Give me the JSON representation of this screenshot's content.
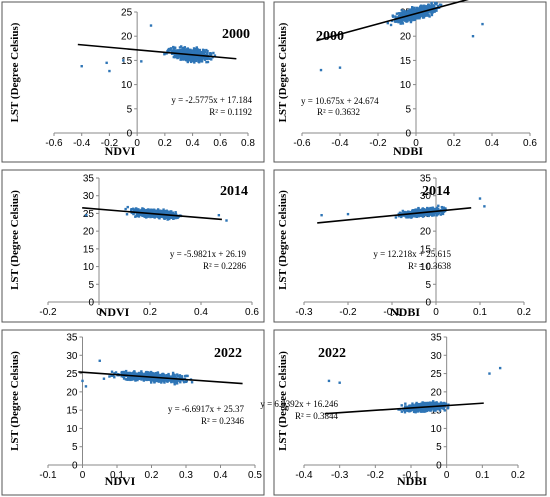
{
  "figure": {
    "chart_data": [
      {
        "type": "scatter",
        "panel": "1",
        "title": "2000",
        "xlabel": "NDVI",
        "ylabel": "LST (Degree Celsius)",
        "xlim": [
          -0.6,
          0.8
        ],
        "ylim": [
          0,
          25
        ],
        "xticks": [
          "-0.6",
          "-0.4",
          "-0.2",
          "0",
          "0.2",
          "0.4",
          "0.6",
          "0.8"
        ],
        "yticks": [
          "0",
          "5",
          "10",
          "15",
          "20",
          "25"
        ],
        "trend": {
          "slope": -2.5775,
          "intercept": 17.184
        },
        "equation": "y = -2.5775x + 17.184",
        "r2": "R² = 0.1192",
        "cloud": {
          "x_center": 0.38,
          "x_spread": 0.13,
          "x_min": 0.05,
          "x_max": 0.66,
          "noise": 1.2
        },
        "outliers": [
          {
            "x": -0.4,
            "y": 13.8
          },
          {
            "x": -0.2,
            "y": 12.8
          },
          {
            "x": -0.22,
            "y": 14.5
          },
          {
            "x": -0.1,
            "y": 15
          },
          {
            "x": 0.1,
            "y": 22.2
          },
          {
            "x": 0.03,
            "y": 14.8
          }
        ]
      },
      {
        "type": "scatter",
        "panel": "2",
        "title": "2000",
        "xlabel": "NDBI",
        "ylabel": "LST (Degree Celsius)",
        "xlim": [
          -0.6,
          0.6
        ],
        "ylim": [
          0,
          25
        ],
        "xticks": [
          "-0.6",
          "-0.4",
          "-0.2",
          "0",
          "0.2",
          "0.4",
          "0.6"
        ],
        "yticks": [
          "0",
          "5",
          "10",
          "15",
          "20",
          "25"
        ],
        "trend": {
          "slope": 10.675,
          "intercept": 24.674
        },
        "equation": "y = 10.675x + 24.674",
        "r2": "R² = 0.3632",
        "cloud": {
          "x_center": 0.0,
          "x_spread": 0.1,
          "x_min": -0.3,
          "x_max": 0.28,
          "noise": 1.1
        },
        "outliers": [
          {
            "x": -0.5,
            "y": 13
          },
          {
            "x": -0.4,
            "y": 13.5
          },
          {
            "x": 0.35,
            "y": 22.5
          },
          {
            "x": 0.3,
            "y": 20
          }
        ]
      },
      {
        "type": "scatter",
        "panel": "3",
        "title": "2014",
        "xlabel": "NDVI",
        "ylabel": "LST (Degree Celsius)",
        "xlim": [
          -0.2,
          0.6
        ],
        "ylim": [
          0,
          35
        ],
        "xticks": [
          "-0.2",
          "0",
          "0.2",
          "0.4",
          "0.6"
        ],
        "yticks": [
          "0",
          "5",
          "10",
          "15",
          "20",
          "25",
          "30",
          "35"
        ],
        "trend": {
          "slope": -5.9821,
          "intercept": 26.19
        },
        "equation": "y = -5.9821x + 26.19",
        "r2": "R² = 0.2286",
        "cloud": {
          "x_center": 0.22,
          "x_spread": 0.08,
          "x_min": 0.08,
          "x_max": 0.45,
          "noise": 1.0
        },
        "outliers": [
          {
            "x": -0.05,
            "y": 24.5
          },
          {
            "x": 0.5,
            "y": 23
          },
          {
            "x": 0.47,
            "y": 24.5
          }
        ]
      },
      {
        "type": "scatter",
        "panel": "4",
        "title": "2014",
        "xlabel": "NDBI",
        "ylabel": "LST (Degree Celsius)",
        "xlim": [
          -0.3,
          0.2
        ],
        "ylim": [
          0,
          35
        ],
        "xticks": [
          "-0.3",
          "-0.2",
          "-0.1",
          "0",
          "0.1",
          "0.2"
        ],
        "yticks": [
          "0",
          "5",
          "10",
          "15",
          "20",
          "25",
          "30",
          "35"
        ],
        "trend": {
          "slope": 12.218,
          "intercept": 25.615
        },
        "equation": "y = 12.218x + 25.615",
        "r2": "R² = 0.3638",
        "cloud": {
          "x_center": -0.03,
          "x_spread": 0.04,
          "x_min": -0.14,
          "x_max": 0.06,
          "noise": 0.9
        },
        "outliers": [
          {
            "x": -0.26,
            "y": 24.5
          },
          {
            "x": -0.2,
            "y": 24.8
          },
          {
            "x": 0.1,
            "y": 29.2
          },
          {
            "x": 0.11,
            "y": 27
          }
        ]
      },
      {
        "type": "scatter",
        "panel": "5",
        "title": "2022",
        "xlabel": "NDVI",
        "ylabel": "LST (Degree Celsius)",
        "xlim": [
          -0.1,
          0.5
        ],
        "ylim": [
          0,
          35
        ],
        "xticks": [
          "-0.1",
          "0",
          "0.1",
          "0.2",
          "0.3",
          "0.4",
          "0.5"
        ],
        "yticks": [
          "0",
          "5",
          "10",
          "15",
          "20",
          "25",
          "30",
          "35"
        ],
        "trend": {
          "slope": -6.6917,
          "intercept": 25.37
        },
        "equation": "y = -6.6917x + 25.37",
        "r2": "R² = 0.2346",
        "cloud": {
          "x_center": 0.2,
          "x_spread": 0.09,
          "x_min": 0.02,
          "x_max": 0.44,
          "noise": 1.1
        },
        "outliers": [
          {
            "x": 0.0,
            "y": 23
          },
          {
            "x": 0.01,
            "y": 21.5
          },
          {
            "x": 0.05,
            "y": 28.5
          }
        ]
      },
      {
        "type": "scatter",
        "panel": "6",
        "title": "2022",
        "xlabel": "NDBI",
        "ylabel": "LST (Degree Celsius)",
        "xlim": [
          -0.4,
          0.2
        ],
        "ylim": [
          0,
          35
        ],
        "xticks": [
          "-0.4",
          "-0.3",
          "-0.2",
          "-0.1",
          "0",
          "0.1",
          "0.2"
        ],
        "yticks": [
          "0",
          "5",
          "10",
          "15",
          "20",
          "25",
          "30",
          "35"
        ],
        "trend": {
          "slope": 6.4392,
          "intercept": 16.246
        },
        "equation": "y = 6.4392x + 16.246",
        "r2": "R² = 0.3844",
        "cloud": {
          "x_center": -0.06,
          "x_spread": 0.05,
          "x_min": -0.2,
          "x_max": 0.08,
          "noise": 1.0
        },
        "outliers": [
          {
            "x": -0.33,
            "y": 23
          },
          {
            "x": -0.3,
            "y": 22.5
          },
          {
            "x": 0.15,
            "y": 26.5
          },
          {
            "x": 0.12,
            "y": 25
          }
        ]
      }
    ],
    "style": {
      "point_color": "#2e75b6",
      "line_color": "#000000",
      "border_color": "#555555",
      "axis_color": "#888888",
      "text_color": "#000000"
    }
  }
}
